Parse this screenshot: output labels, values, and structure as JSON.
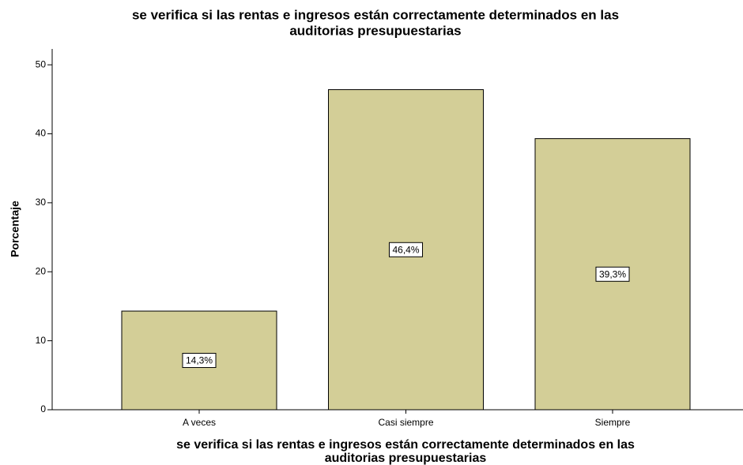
{
  "chart_data": {
    "type": "bar",
    "title": [
      "se verifica si las rentas e ingresos están correctamente determinados en las",
      "auditorias presupuestarias"
    ],
    "x_label": [
      "se verifica si las rentas e ingresos están correctamente determinados en las",
      "auditorias presupuestarias"
    ],
    "y_label": "Porcentaje",
    "categories": [
      "A veces",
      "Casi siempre",
      "Siempre"
    ],
    "values": [
      14.3,
      46.4,
      39.3
    ],
    "value_labels": [
      "14,3%",
      "46,4%",
      "39,3%"
    ],
    "color": "#d3ce97",
    "ylim": [
      0,
      52.3
    ],
    "yticks": [
      0,
      10,
      20,
      30,
      40,
      50
    ],
    "grid": false
  }
}
